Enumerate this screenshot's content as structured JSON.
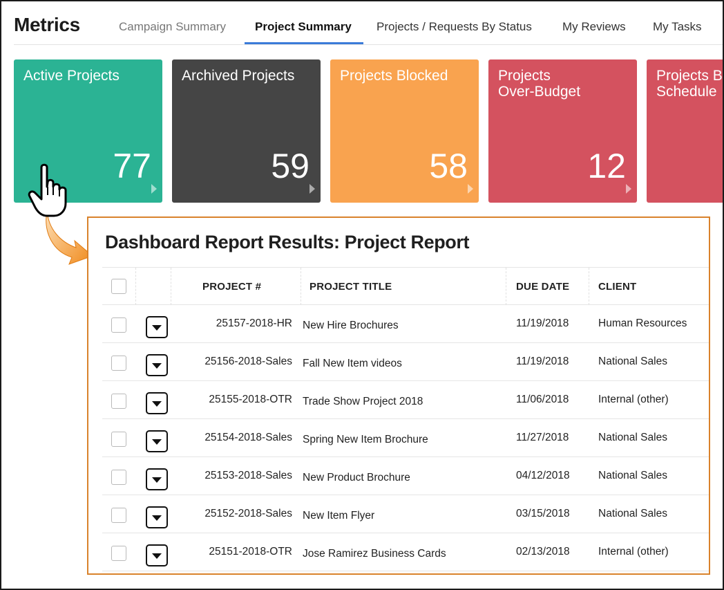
{
  "header": {
    "title": "Metrics",
    "tabs": [
      {
        "label": "Campaign Summary"
      },
      {
        "label": "Project Summary"
      },
      {
        "label": "Projects / Requests By Status"
      },
      {
        "label": "My Reviews"
      },
      {
        "label": "My Tasks"
      }
    ],
    "active_tab": "Project Summary"
  },
  "tiles": [
    {
      "label": "Active Projects",
      "value": "77",
      "color": "#2bb394"
    },
    {
      "label": "Archived Projects",
      "value": "59",
      "color": "#454545"
    },
    {
      "label": "Projects Blocked",
      "value": "58",
      "color": "#f9a34f"
    },
    {
      "label": "Projects\nOver-Budget",
      "value": "12",
      "color": "#d4525f"
    },
    {
      "label": "Projects B\nSchedule",
      "value": "",
      "color": "#d4525f"
    }
  ],
  "report": {
    "title": "Dashboard Report Results: Project Report",
    "accent_color": "#d9822b",
    "columns": [
      "PROJECT #",
      "PROJECT TITLE",
      "DUE DATE",
      "CLIENT"
    ],
    "rows": [
      {
        "project": "25157-2018-HR",
        "title": "New Hire Brochures",
        "due": "11/19/2018",
        "client": "Human Resources"
      },
      {
        "project": "25156-2018-Sales",
        "title": "Fall New Item videos",
        "due": "11/19/2018",
        "client": "National Sales"
      },
      {
        "project": "25155-2018-OTR",
        "title": "Trade Show Project 2018",
        "due": "11/06/2018",
        "client": "Internal (other)"
      },
      {
        "project": "25154-2018-Sales",
        "title": "Spring New Item Brochure",
        "due": "11/27/2018",
        "client": "National Sales"
      },
      {
        "project": "25153-2018-Sales",
        "title": "New Product Brochure",
        "due": "04/12/2018",
        "client": "National Sales"
      },
      {
        "project": "25152-2018-Sales",
        "title": "New Item Flyer",
        "due": "03/15/2018",
        "client": "National Sales"
      },
      {
        "project": "25151-2018-OTR",
        "title": "Jose Ramirez Business Cards",
        "due": "02/13/2018",
        "client": "Internal (other)"
      }
    ]
  },
  "icons": {
    "cursor": "hand-pointer-icon",
    "callout": "curved-arrow-icon",
    "row_menu": "chevron-down-icon"
  }
}
